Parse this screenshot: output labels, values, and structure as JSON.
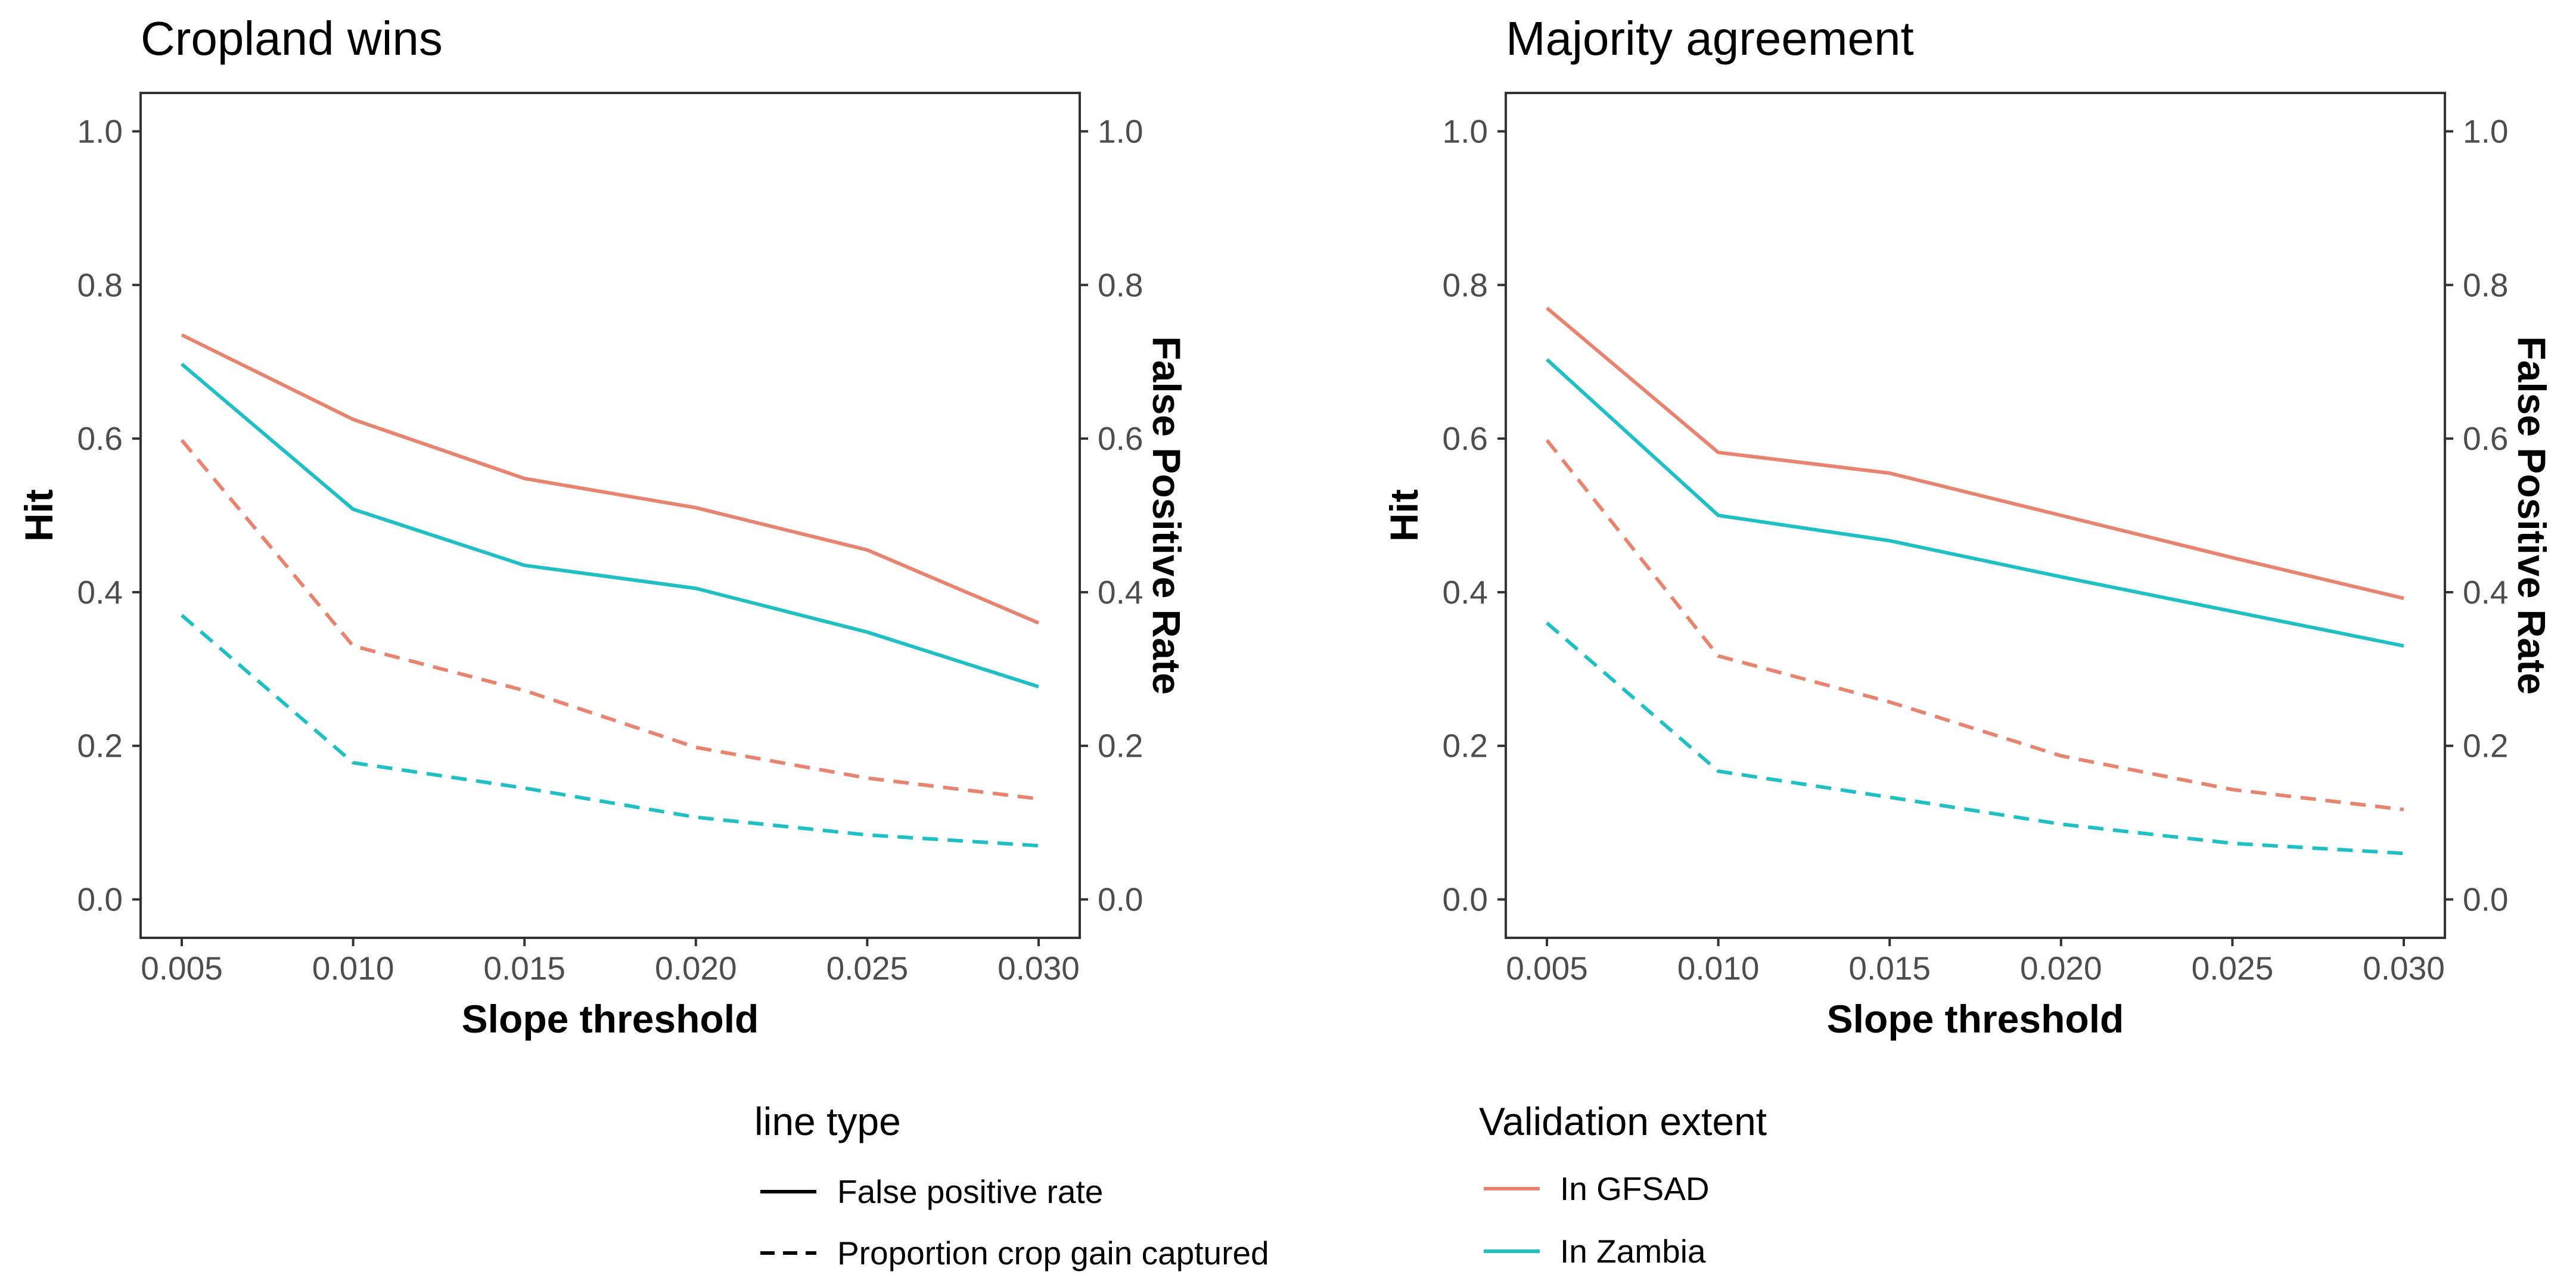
{
  "chart_data": [
    {
      "type": "line",
      "title": "Cropland wins",
      "xlabel": "Slope threshold",
      "ylabel": "Hit",
      "y2label": "False Positive Rate",
      "x": [
        0.005,
        0.01,
        0.015,
        0.02,
        0.025,
        0.03
      ],
      "x_tick_labels": [
        "0.005",
        "0.010",
        "0.015",
        "0.020",
        "0.025",
        "0.030"
      ],
      "xlim": [
        0.0038,
        0.0312
      ],
      "ylim": [
        -0.05,
        1.05
      ],
      "y_ticks": [
        0.0,
        0.2,
        0.4,
        0.6,
        0.8,
        1.0
      ],
      "y_tick_labels": [
        "0.0",
        "0.2",
        "0.4",
        "0.6",
        "0.8",
        "1.0"
      ],
      "series": [
        {
          "name": "In GFSAD - False positive rate",
          "extent": "In GFSAD",
          "linetype": "solid",
          "values": [
            0.735,
            0.625,
            0.548,
            0.51,
            0.455,
            0.36
          ]
        },
        {
          "name": "In Zambia - False positive rate",
          "extent": "In Zambia",
          "linetype": "solid",
          "values": [
            0.697,
            0.508,
            0.435,
            0.405,
            0.348,
            0.277
          ]
        },
        {
          "name": "In GFSAD - Proportion crop gain captured",
          "extent": "In GFSAD",
          "linetype": "dashed",
          "values": [
            0.598,
            0.33,
            0.272,
            0.198,
            0.158,
            0.131
          ]
        },
        {
          "name": "In Zambia - Proportion crop gain captured",
          "extent": "In Zambia",
          "linetype": "dashed",
          "values": [
            0.37,
            0.178,
            0.145,
            0.107,
            0.084,
            0.07
          ]
        }
      ]
    },
    {
      "type": "line",
      "title": "Majority agreement",
      "xlabel": "Slope threshold",
      "ylabel": "Hit",
      "y2label": "False Positive Rate",
      "x": [
        0.005,
        0.01,
        0.015,
        0.02,
        0.025,
        0.03
      ],
      "x_tick_labels": [
        "0.005",
        "0.010",
        "0.015",
        "0.020",
        "0.025",
        "0.030"
      ],
      "xlim": [
        0.0038,
        0.0312
      ],
      "ylim": [
        -0.05,
        1.05
      ],
      "y_ticks": [
        0.0,
        0.2,
        0.4,
        0.6,
        0.8,
        1.0
      ],
      "y_tick_labels": [
        "0.0",
        "0.2",
        "0.4",
        "0.6",
        "0.8",
        "1.0"
      ],
      "series": [
        {
          "name": "In GFSAD - False positive rate",
          "extent": "In GFSAD",
          "linetype": "solid",
          "values": [
            0.77,
            0.582,
            0.555,
            0.5,
            0.445,
            0.392
          ]
        },
        {
          "name": "In Zambia - False positive rate",
          "extent": "In Zambia",
          "linetype": "solid",
          "values": [
            0.703,
            0.5,
            0.467,
            0.42,
            0.375,
            0.33
          ]
        },
        {
          "name": "In GFSAD - Proportion crop gain captured",
          "extent": "In GFSAD",
          "linetype": "dashed",
          "values": [
            0.598,
            0.317,
            0.257,
            0.187,
            0.143,
            0.117
          ]
        },
        {
          "name": "In Zambia - Proportion crop gain captured",
          "extent": "In Zambia",
          "linetype": "dashed",
          "values": [
            0.36,
            0.167,
            0.133,
            0.098,
            0.073,
            0.06
          ]
        }
      ]
    }
  ],
  "legends": {
    "line_type": {
      "title": "line type",
      "items": [
        {
          "label": "False positive rate",
          "linetype": "solid"
        },
        {
          "label": "Proportion crop gain captured",
          "linetype": "dashed"
        }
      ]
    },
    "validation_extent": {
      "title": "Validation extent",
      "items": [
        {
          "label": "In GFSAD",
          "color": "#F8766D"
        },
        {
          "label": "In Zambia",
          "color": "#00BFC4"
        }
      ]
    }
  },
  "colors": {
    "In GFSAD": "#E8836F",
    "In Zambia": "#1FBFC4",
    "legend_line": "#000000",
    "panel_border": "#333333",
    "tick_label": "#4d4d4d"
  }
}
